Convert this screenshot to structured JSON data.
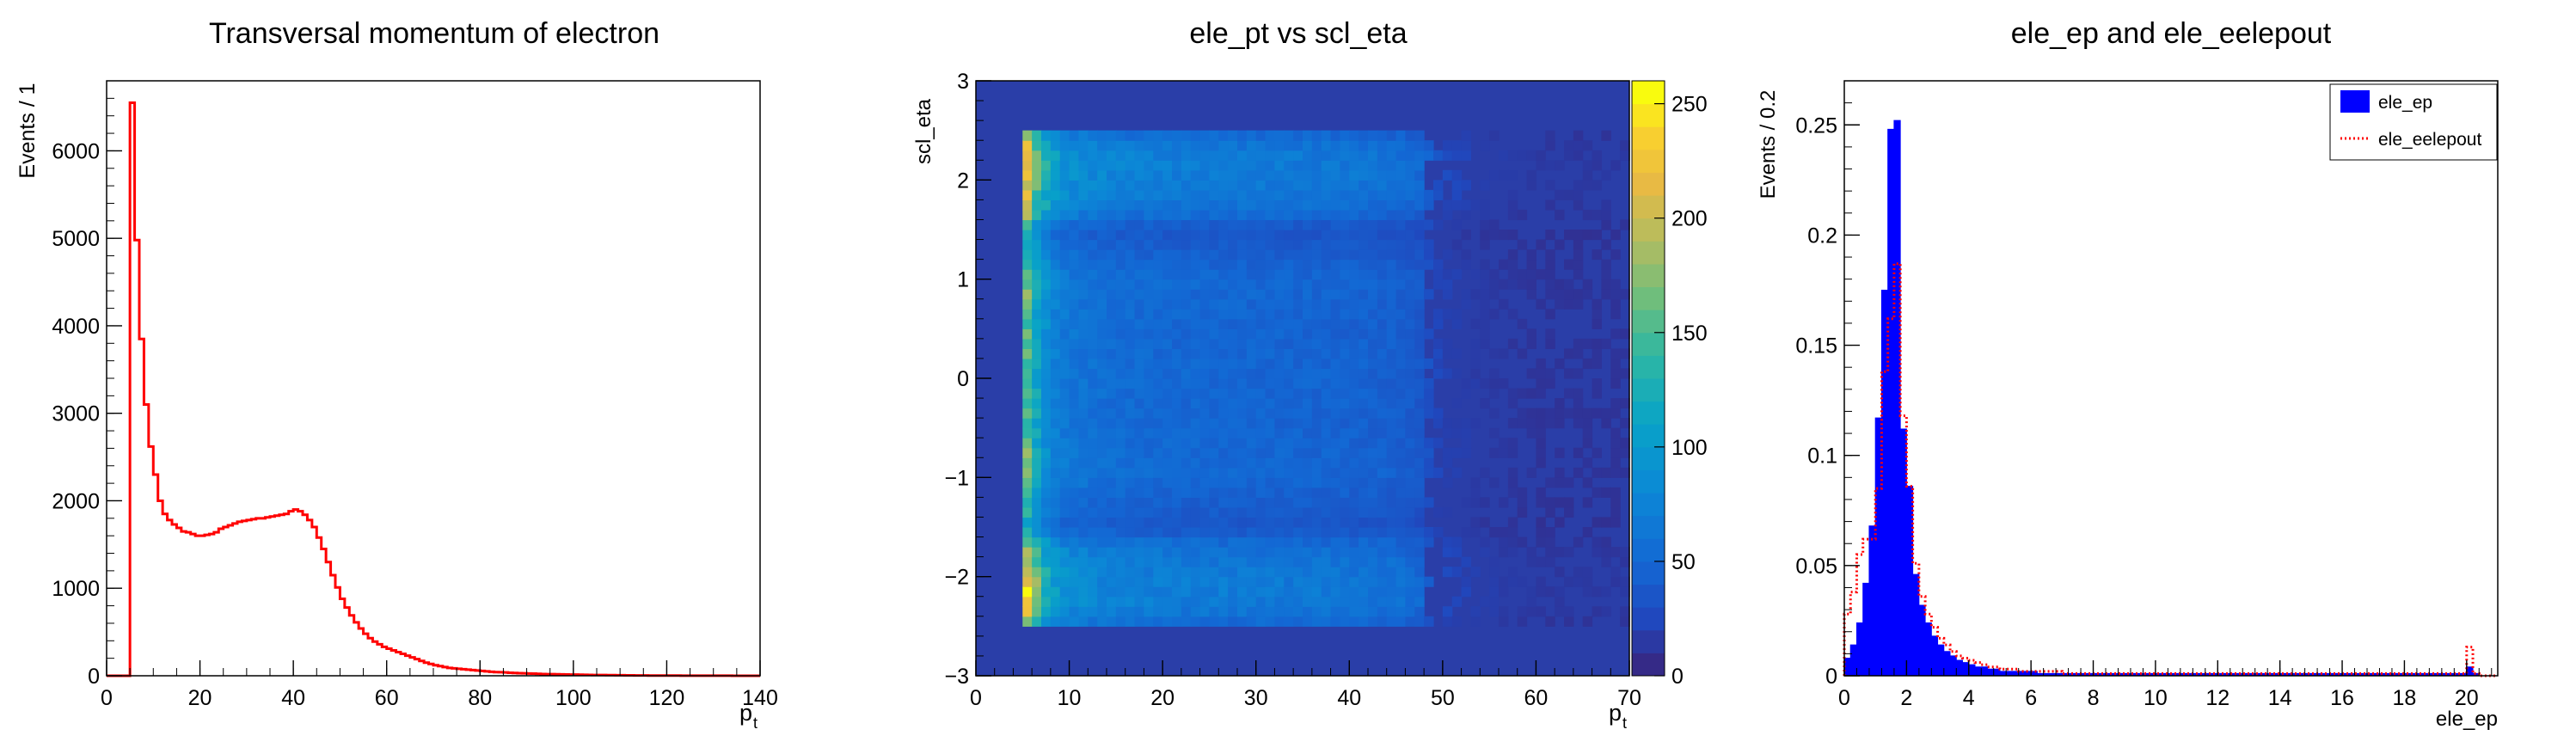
{
  "chart_data": [
    {
      "type": "histogram",
      "title": "Transversal momentum of electron",
      "xlabel": "p",
      "xlabel_sub": "t",
      "ylabel": "Events / 1",
      "xlim": [
        0,
        140
      ],
      "ylim": [
        0,
        6800
      ],
      "xticks": [
        0,
        20,
        40,
        60,
        80,
        100,
        120,
        140
      ],
      "yticks": [
        0,
        1000,
        2000,
        3000,
        4000,
        5000,
        6000
      ],
      "line_color": "#ff0000",
      "bin_width": 1,
      "bin_start": 5,
      "values": [
        6550,
        4980,
        3850,
        3100,
        2620,
        2300,
        2000,
        1850,
        1780,
        1730,
        1690,
        1650,
        1640,
        1620,
        1600,
        1600,
        1610,
        1620,
        1640,
        1680,
        1700,
        1720,
        1740,
        1760,
        1770,
        1780,
        1790,
        1800,
        1800,
        1810,
        1820,
        1830,
        1840,
        1850,
        1880,
        1900,
        1880,
        1840,
        1780,
        1700,
        1580,
        1450,
        1300,
        1150,
        1010,
        880,
        780,
        690,
        610,
        540,
        480,
        430,
        390,
        360,
        330,
        310,
        290,
        270,
        250,
        230,
        210,
        190,
        170,
        150,
        135,
        120,
        110,
        100,
        90,
        85,
        80,
        75,
        70,
        65,
        60,
        55,
        50,
        45,
        42,
        40,
        38,
        35,
        32,
        30,
        28,
        26,
        24,
        22,
        20,
        19,
        18,
        17,
        16,
        15,
        14,
        13,
        12,
        11,
        10,
        9,
        8,
        8,
        7,
        7,
        6,
        6,
        5,
        5,
        4,
        4,
        4,
        3,
        3,
        3,
        2,
        2,
        2,
        2,
        1,
        1,
        1,
        1,
        1,
        1,
        1,
        1,
        1,
        1,
        1,
        0,
        0,
        0,
        0,
        0,
        0
      ]
    },
    {
      "type": "heatmap",
      "title": "ele_pt vs scl_eta",
      "xlabel": "p",
      "xlabel_sub": "t",
      "ylabel": "scl_eta",
      "xlim": [
        0,
        70
      ],
      "ylim": [
        -3,
        3
      ],
      "xticks": [
        0,
        10,
        20,
        30,
        40,
        50,
        60,
        70
      ],
      "yticks": [
        -3,
        -2,
        -1,
        0,
        1,
        2,
        3
      ],
      "z_range": [
        0,
        260
      ],
      "colorbar_ticks": [
        0,
        50,
        100,
        150,
        200,
        250
      ],
      "x_bin_width": 1,
      "y_bin_width": 0.1,
      "filled_eta_range": [
        -2.5,
        2.5
      ],
      "background_color": "#2a3ea8",
      "pt_profile": {
        "x": [
          5,
          6,
          7,
          8,
          9,
          10,
          12,
          15,
          20,
          25,
          30,
          35,
          40,
          45,
          48,
          50,
          55,
          60
        ],
        "z": [
          230,
          160,
          120,
          95,
          80,
          75,
          68,
          62,
          58,
          56,
          55,
          54,
          52,
          48,
          40,
          20,
          12,
          8
        ]
      },
      "eta_profile": {
        "x": [
          -2.5,
          -2.3,
          -2.1,
          -1.9,
          -1.7,
          -1.5,
          -1.0,
          -0.5,
          0.0,
          0.5,
          1.0,
          1.5,
          1.7,
          1.9,
          2.1,
          2.3,
          2.5
        ],
        "factor": [
          0.8,
          1.15,
          1.2,
          1.1,
          1.0,
          0.55,
          0.85,
          0.8,
          0.82,
          0.8,
          0.85,
          0.55,
          1.0,
          1.1,
          1.2,
          1.15,
          0.8
        ]
      }
    },
    {
      "type": "histogram",
      "title": "ele_ep and ele_eelepout",
      "xlabel": "ele_ep",
      "ylabel": "Events / 0.2",
      "xlim": [
        0,
        21
      ],
      "ylim": [
        0,
        0.27
      ],
      "xticks": [
        0,
        2,
        4,
        6,
        8,
        10,
        12,
        14,
        16,
        18,
        20
      ],
      "yticks": [
        0,
        0.05,
        0.1,
        0.15,
        0.2,
        0.25
      ],
      "ytick_labels": [
        "0",
        "0.05",
        "0.1",
        "0.15",
        "0.2",
        "0.25"
      ],
      "bin_width": 0.2,
      "series": [
        {
          "name": "ele_ep",
          "style": "filled",
          "color": "#0000ff",
          "values": [
            0.008,
            0.014,
            0.024,
            0.042,
            0.068,
            0.117,
            0.175,
            0.248,
            0.252,
            0.112,
            0.086,
            0.046,
            0.032,
            0.024,
            0.018,
            0.014,
            0.011,
            0.009,
            0.007,
            0.006,
            0.005,
            0.004,
            0.004,
            0.003,
            0.003,
            0.002,
            0.002,
            0.002,
            0.002,
            0.002,
            0.002,
            0.001,
            0.001,
            0.001,
            0.001,
            0.001,
            0.001,
            0.001,
            0.001,
            0.001,
            0.001,
            0.001,
            0.001,
            0.001,
            0.001,
            0.001,
            0.001,
            0.001,
            0.001,
            0.001,
            0.001,
            0.001,
            0.001,
            0.001,
            0.001,
            0.001,
            0.001,
            0.001,
            0.001,
            0.001,
            0.001,
            0.001,
            0.001,
            0.001,
            0.001,
            0.001,
            0.001,
            0.001,
            0.001,
            0.001,
            0.001,
            0.001,
            0.001,
            0.001,
            0.001,
            0.001,
            0.001,
            0.001,
            0.001,
            0.001,
            0.001,
            0.001,
            0.001,
            0.001,
            0.001,
            0.001,
            0.001,
            0.001,
            0.001,
            0.001,
            0.001,
            0.001,
            0.001,
            0.001,
            0.001,
            0.001,
            0.001,
            0.001,
            0.001,
            0.001,
            0.004,
            0.001,
            0.0,
            0.0,
            0.0
          ]
        },
        {
          "name": "ele_eelepout",
          "style": "dotted",
          "color": "#ff0000",
          "values": [
            0.028,
            0.038,
            0.055,
            0.062,
            0.062,
            0.085,
            0.138,
            0.162,
            0.187,
            0.118,
            0.086,
            0.051,
            0.036,
            0.028,
            0.022,
            0.017,
            0.014,
            0.011,
            0.009,
            0.008,
            0.007,
            0.006,
            0.005,
            0.004,
            0.004,
            0.003,
            0.003,
            0.003,
            0.002,
            0.002,
            0.002,
            0.002,
            0.002,
            0.002,
            0.002,
            0.001,
            0.001,
            0.001,
            0.001,
            0.001,
            0.001,
            0.001,
            0.001,
            0.001,
            0.001,
            0.001,
            0.001,
            0.001,
            0.001,
            0.001,
            0.001,
            0.001,
            0.001,
            0.001,
            0.001,
            0.001,
            0.001,
            0.001,
            0.001,
            0.001,
            0.001,
            0.001,
            0.001,
            0.001,
            0.001,
            0.001,
            0.001,
            0.001,
            0.001,
            0.001,
            0.001,
            0.001,
            0.001,
            0.001,
            0.001,
            0.001,
            0.001,
            0.001,
            0.001,
            0.001,
            0.001,
            0.001,
            0.001,
            0.001,
            0.001,
            0.001,
            0.001,
            0.001,
            0.001,
            0.001,
            0.001,
            0.001,
            0.001,
            0.001,
            0.001,
            0.001,
            0.001,
            0.001,
            0.001,
            0.001,
            0.013,
            0.001,
            0.0,
            0.0,
            0.0
          ]
        }
      ],
      "legend": {
        "placement": "top-right",
        "entries": [
          "ele_ep",
          "ele_eelepout"
        ]
      }
    }
  ]
}
